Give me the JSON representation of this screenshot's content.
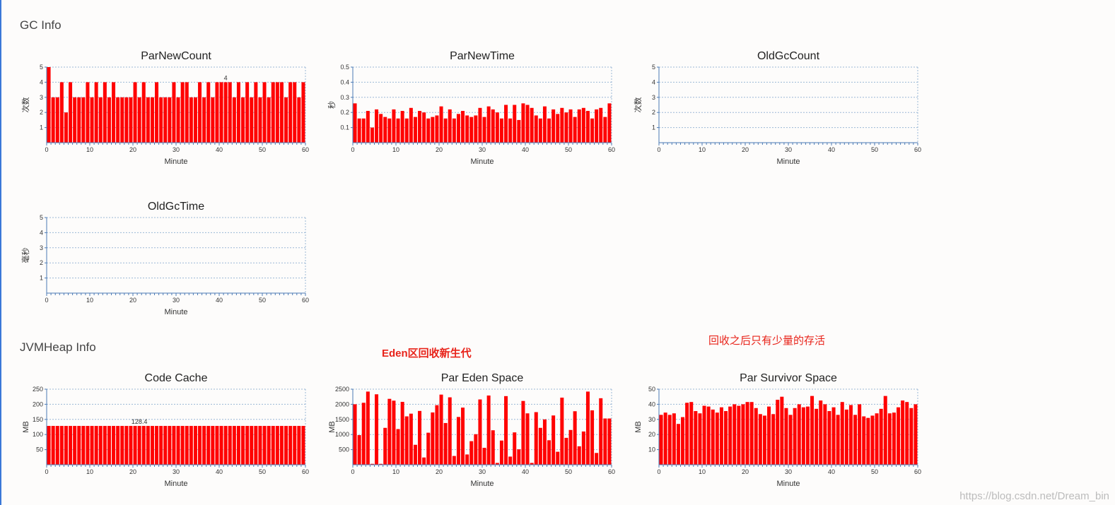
{
  "sections": {
    "gc_title": "GC Info",
    "heap_title": "JVMHeap Info"
  },
  "annotations": {
    "eden": "Eden区回收新生代",
    "survivor": "回收之后只有少量的存活"
  },
  "watermark": "https://blog.csdn.net/Dream_bin",
  "colors": {
    "bar": "#ff0000",
    "axis": "#4a7ab5",
    "grid": "#9bb7d6"
  },
  "chart_data": [
    {
      "id": "parnewcount",
      "type": "bar",
      "title": "ParNewCount",
      "xlabel": "Minute",
      "ylabel": "次数",
      "ylim": [
        0,
        5
      ],
      "yticks": [
        1,
        2,
        3,
        4,
        5
      ],
      "ytick_labels": [
        "1",
        "2",
        "3",
        "4",
        "5"
      ],
      "xlim": [
        0,
        60
      ],
      "xticks": [
        0,
        10,
        20,
        30,
        40,
        50,
        60
      ],
      "x": [
        1,
        2,
        3,
        4,
        5,
        6,
        7,
        8,
        9,
        10,
        11,
        12,
        13,
        14,
        15,
        16,
        17,
        18,
        19,
        20,
        21,
        22,
        23,
        24,
        25,
        26,
        27,
        28,
        29,
        30,
        31,
        32,
        33,
        34,
        35,
        36,
        37,
        38,
        39,
        40,
        41,
        42,
        43,
        44,
        45,
        46,
        47,
        48,
        49,
        50,
        51,
        52,
        53,
        54,
        55,
        56,
        57,
        58,
        59,
        60
      ],
      "values": [
        5,
        3,
        3,
        4,
        2,
        4,
        3,
        3,
        3,
        4,
        3,
        4,
        3,
        4,
        3,
        4,
        3,
        3,
        3,
        3,
        4,
        3,
        4,
        3,
        3,
        4,
        3,
        3,
        3,
        4,
        3,
        4,
        4,
        3,
        3,
        4,
        3,
        4,
        3,
        4,
        4,
        4,
        4,
        3,
        4,
        3,
        4,
        3,
        4,
        3,
        4,
        3,
        4,
        4,
        4,
        3,
        4,
        4,
        3,
        4
      ],
      "data_labels": [
        {
          "x": 42,
          "text": "4"
        }
      ]
    },
    {
      "id": "parnewtime",
      "type": "bar",
      "title": "ParNewTime",
      "xlabel": "Minute",
      "ylabel": "秒",
      "ylim": [
        0,
        0.5
      ],
      "yticks": [
        0.1,
        0.2,
        0.3,
        0.4,
        0.5
      ],
      "ytick_labels": [
        "0.1",
        "0.2",
        "0.3",
        "0.4",
        "0.5"
      ],
      "xlim": [
        0,
        60
      ],
      "xticks": [
        0,
        10,
        20,
        30,
        40,
        50,
        60
      ],
      "x": [
        1,
        2,
        3,
        4,
        5,
        6,
        7,
        8,
        9,
        10,
        11,
        12,
        13,
        14,
        15,
        16,
        17,
        18,
        19,
        20,
        21,
        22,
        23,
        24,
        25,
        26,
        27,
        28,
        29,
        30,
        31,
        32,
        33,
        34,
        35,
        36,
        37,
        38,
        39,
        40,
        41,
        42,
        43,
        44,
        45,
        46,
        47,
        48,
        49,
        50,
        51,
        52,
        53,
        54,
        55,
        56,
        57,
        58,
        59,
        60
      ],
      "values": [
        0.26,
        0.16,
        0.16,
        0.21,
        0.1,
        0.22,
        0.19,
        0.17,
        0.16,
        0.22,
        0.16,
        0.21,
        0.16,
        0.23,
        0.17,
        0.21,
        0.2,
        0.16,
        0.17,
        0.18,
        0.24,
        0.16,
        0.22,
        0.16,
        0.19,
        0.21,
        0.18,
        0.17,
        0.18,
        0.23,
        0.17,
        0.24,
        0.22,
        0.2,
        0.16,
        0.25,
        0.16,
        0.25,
        0.15,
        0.26,
        0.25,
        0.23,
        0.18,
        0.16,
        0.24,
        0.16,
        0.22,
        0.19,
        0.23,
        0.2,
        0.22,
        0.17,
        0.22,
        0.23,
        0.21,
        0.16,
        0.22,
        0.23,
        0.17,
        0.26
      ],
      "data_labels": []
    },
    {
      "id": "oldgccount",
      "type": "bar",
      "title": "OldGcCount",
      "xlabel": "Minute",
      "ylabel": "次数",
      "ylim": [
        0,
        5
      ],
      "yticks": [
        1,
        2,
        3,
        4,
        5
      ],
      "ytick_labels": [
        "1",
        "2",
        "3",
        "4",
        "5"
      ],
      "xlim": [
        0,
        60
      ],
      "xticks": [
        0,
        10,
        20,
        30,
        40,
        50,
        60
      ],
      "x": [],
      "values": [],
      "data_labels": []
    },
    {
      "id": "oldgctime",
      "type": "bar",
      "title": "OldGcTime",
      "xlabel": "Minute",
      "ylabel": "毫秒",
      "ylim": [
        0,
        5
      ],
      "yticks": [
        1,
        2,
        3,
        4,
        5
      ],
      "ytick_labels": [
        "1",
        "2",
        "3",
        "4",
        "5"
      ],
      "xlim": [
        0,
        60
      ],
      "xticks": [
        0,
        10,
        20,
        30,
        40,
        50,
        60
      ],
      "x": [],
      "values": [],
      "data_labels": []
    },
    {
      "id": "codecache",
      "type": "bar",
      "title": "Code Cache",
      "xlabel": "Minute",
      "ylabel": "MB",
      "ylim": [
        0,
        250
      ],
      "yticks": [
        50,
        100,
        150,
        200,
        250
      ],
      "ytick_labels": [
        "50",
        "100",
        "150",
        "200",
        "250"
      ],
      "xlim": [
        0,
        60
      ],
      "xticks": [
        0,
        10,
        20,
        30,
        40,
        50,
        60
      ],
      "x": [
        1,
        2,
        3,
        4,
        5,
        6,
        7,
        8,
        9,
        10,
        11,
        12,
        13,
        14,
        15,
        16,
        17,
        18,
        19,
        20,
        21,
        22,
        23,
        24,
        25,
        26,
        27,
        28,
        29,
        30,
        31,
        32,
        33,
        34,
        35,
        36,
        37,
        38,
        39,
        40,
        41,
        42,
        43,
        44,
        45,
        46,
        47,
        48,
        49,
        50,
        51,
        52,
        53,
        54,
        55,
        56,
        57,
        58,
        59,
        60
      ],
      "values": [
        128.4,
        128.4,
        128.4,
        128.4,
        128.4,
        128.4,
        128.4,
        128.4,
        128.4,
        128.4,
        128.4,
        128.4,
        128.4,
        128.4,
        128.4,
        128.4,
        128.4,
        128.4,
        128.4,
        128.4,
        128.4,
        128.4,
        128.4,
        128.4,
        128.4,
        128.4,
        128.4,
        128.4,
        128.4,
        128.4,
        128.4,
        128.4,
        128.4,
        128.4,
        128.4,
        128.4,
        128.4,
        128.4,
        128.4,
        128.4,
        128.4,
        128.4,
        128.4,
        128.4,
        128.4,
        128.4,
        128.4,
        128.4,
        128.4,
        128.4,
        128.4,
        128.4,
        128.4,
        128.4,
        128.4,
        128.4,
        128.4,
        128.4,
        128.4,
        128.4
      ],
      "data_labels": [
        {
          "x": 22,
          "text": "128.4"
        }
      ]
    },
    {
      "id": "pareden",
      "type": "bar",
      "title": "Par Eden Space",
      "xlabel": "Minute",
      "ylabel": "MB",
      "ylim": [
        0,
        2500
      ],
      "yticks": [
        500,
        1000,
        1500,
        2000,
        2500
      ],
      "ytick_labels": [
        "500",
        "1000",
        "1500",
        "2000",
        "2500"
      ],
      "xlim": [
        0,
        60
      ],
      "xticks": [
        0,
        10,
        20,
        30,
        40,
        50,
        60
      ],
      "x": [
        1,
        2,
        3,
        4,
        5,
        6,
        7,
        8,
        9,
        10,
        11,
        12,
        13,
        14,
        15,
        16,
        17,
        18,
        19,
        20,
        21,
        22,
        23,
        24,
        25,
        26,
        27,
        28,
        29,
        30,
        31,
        32,
        33,
        34,
        35,
        36,
        37,
        38,
        39,
        40,
        41,
        42,
        43,
        44,
        45,
        46,
        47,
        48,
        49,
        50,
        51,
        52,
        53,
        54,
        55,
        56,
        57,
        58,
        59,
        60
      ],
      "values": [
        2000,
        980,
        2050,
        2420,
        30,
        2330,
        30,
        1220,
        2180,
        2120,
        1180,
        2080,
        1600,
        1690,
        660,
        1780,
        240,
        1060,
        1730,
        1970,
        2320,
        1380,
        2230,
        290,
        1580,
        1890,
        340,
        780,
        1010,
        2160,
        560,
        2290,
        1140,
        60,
        800,
        2270,
        270,
        1070,
        510,
        2110,
        1700,
        60,
        1740,
        1220,
        1500,
        810,
        1630,
        430,
        2220,
        890,
        1150,
        1770,
        610,
        1100,
        2420,
        1800,
        390,
        2200,
        1530,
        1530
      ],
      "data_labels": []
    },
    {
      "id": "parsurvivor",
      "type": "bar",
      "title": "Par Survivor Space",
      "xlabel": "Minute",
      "ylabel": "MB",
      "ylim": [
        0,
        50
      ],
      "yticks": [
        10,
        20,
        30,
        40,
        50
      ],
      "ytick_labels": [
        "10",
        "20",
        "30",
        "40",
        "50"
      ],
      "xlim": [
        0,
        60
      ],
      "xticks": [
        0,
        10,
        20,
        30,
        40,
        50,
        60
      ],
      "x": [
        1,
        2,
        3,
        4,
        5,
        6,
        7,
        8,
        9,
        10,
        11,
        12,
        13,
        14,
        15,
        16,
        17,
        18,
        19,
        20,
        21,
        22,
        23,
        24,
        25,
        26,
        27,
        28,
        29,
        30,
        31,
        32,
        33,
        34,
        35,
        36,
        37,
        38,
        39,
        40,
        41,
        42,
        43,
        44,
        45,
        46,
        47,
        48,
        49,
        50,
        51,
        52,
        53,
        54,
        55,
        56,
        57,
        58,
        59,
        60
      ],
      "values": [
        33,
        34.5,
        33,
        34,
        27,
        31.5,
        41,
        41.5,
        35.5,
        34,
        39,
        38.5,
        36.5,
        34.5,
        38,
        35.5,
        38.5,
        40,
        39,
        40,
        41.5,
        41.5,
        37.5,
        33.5,
        32.5,
        38.5,
        33.5,
        43,
        45,
        37.5,
        33,
        37.5,
        40,
        38,
        38.5,
        45.5,
        37,
        42.5,
        40,
        35.5,
        38,
        33,
        41.5,
        36.5,
        39.5,
        33,
        40,
        32,
        31,
        32.5,
        34,
        37,
        45.5,
        34,
        34.5,
        38,
        42.5,
        41.5,
        37.5,
        40
      ],
      "data_labels": []
    }
  ]
}
